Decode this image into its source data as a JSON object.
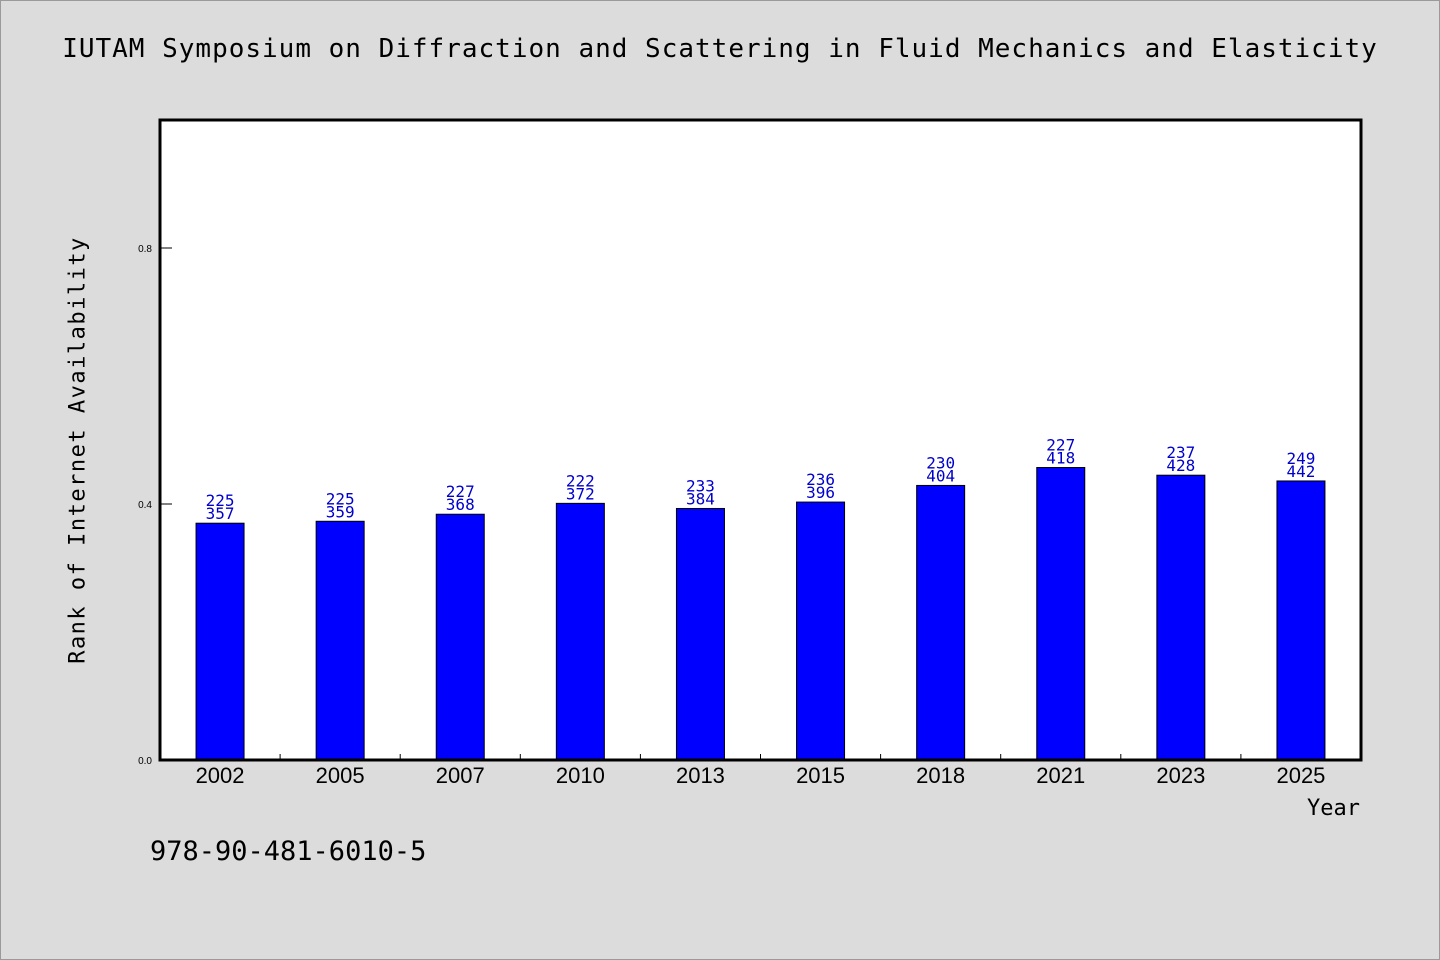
{
  "chart_data": {
    "type": "bar",
    "title": "IUTAM Symposium on Diffraction and Scattering in Fluid Mechanics and Elasticity",
    "xlabel": "Year",
    "ylabel": "Rank of Internet Availability",
    "categories": [
      "2002",
      "2005",
      "2007",
      "2010",
      "2013",
      "2015",
      "2018",
      "2021",
      "2023",
      "2025"
    ],
    "values": [
      0.37,
      0.373,
      0.384,
      0.401,
      0.393,
      0.403,
      0.429,
      0.457,
      0.445,
      0.436
    ],
    "labels_top": [
      "225",
      "225",
      "227",
      "222",
      "233",
      "236",
      "230",
      "227",
      "237",
      "249"
    ],
    "labels_bottom": [
      "357",
      "359",
      "368",
      "372",
      "384",
      "396",
      "404",
      "418",
      "428",
      "442"
    ],
    "yticks": [
      "0.0",
      "0.4",
      "0.8"
    ],
    "ylim": [
      0,
      1.0
    ],
    "grid": false,
    "bar_color": "#0000ff",
    "label_color": "#0000cc"
  },
  "footer": {
    "isbn": "978-90-481-6010-5"
  }
}
